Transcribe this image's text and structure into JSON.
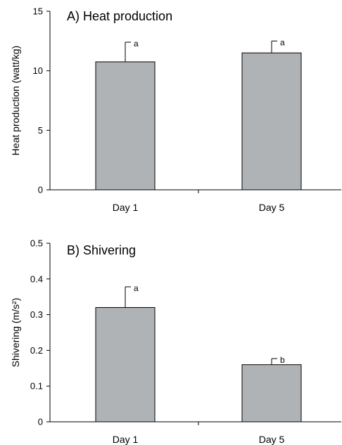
{
  "chart_data": [
    {
      "type": "bar",
      "title": "A) Heat production",
      "ylabel": "Heat production (watt/kg)",
      "xlabel": "",
      "categories": [
        "Day 1",
        "Day 5"
      ],
      "values": [
        10.75,
        11.5
      ],
      "error_upper": [
        1.65,
        1.0
      ],
      "significance": [
        "a",
        "a"
      ],
      "ylim": [
        0,
        15
      ],
      "yticks": [
        0,
        5,
        10,
        15
      ],
      "ytick_labels": [
        "0",
        "5",
        "10",
        "15"
      ],
      "grid": false,
      "bar_color": "#b0b3b6"
    },
    {
      "type": "bar",
      "title": "B) Shivering",
      "ylabel": "Shivering (m/s²)",
      "xlabel": "",
      "categories": [
        "Day 1",
        "Day 5"
      ],
      "values": [
        0.32,
        0.16
      ],
      "error_upper": [
        0.058,
        0.017
      ],
      "significance": [
        "a",
        "b"
      ],
      "ylim": [
        0,
        0.5
      ],
      "yticks": [
        0,
        0.1,
        0.2,
        0.3,
        0.4,
        0.5
      ],
      "ytick_labels": [
        "0",
        "0.1",
        "0.2",
        "0.3",
        "0.4",
        "0.5"
      ],
      "grid": false,
      "bar_color": "#b0b3b6"
    }
  ]
}
